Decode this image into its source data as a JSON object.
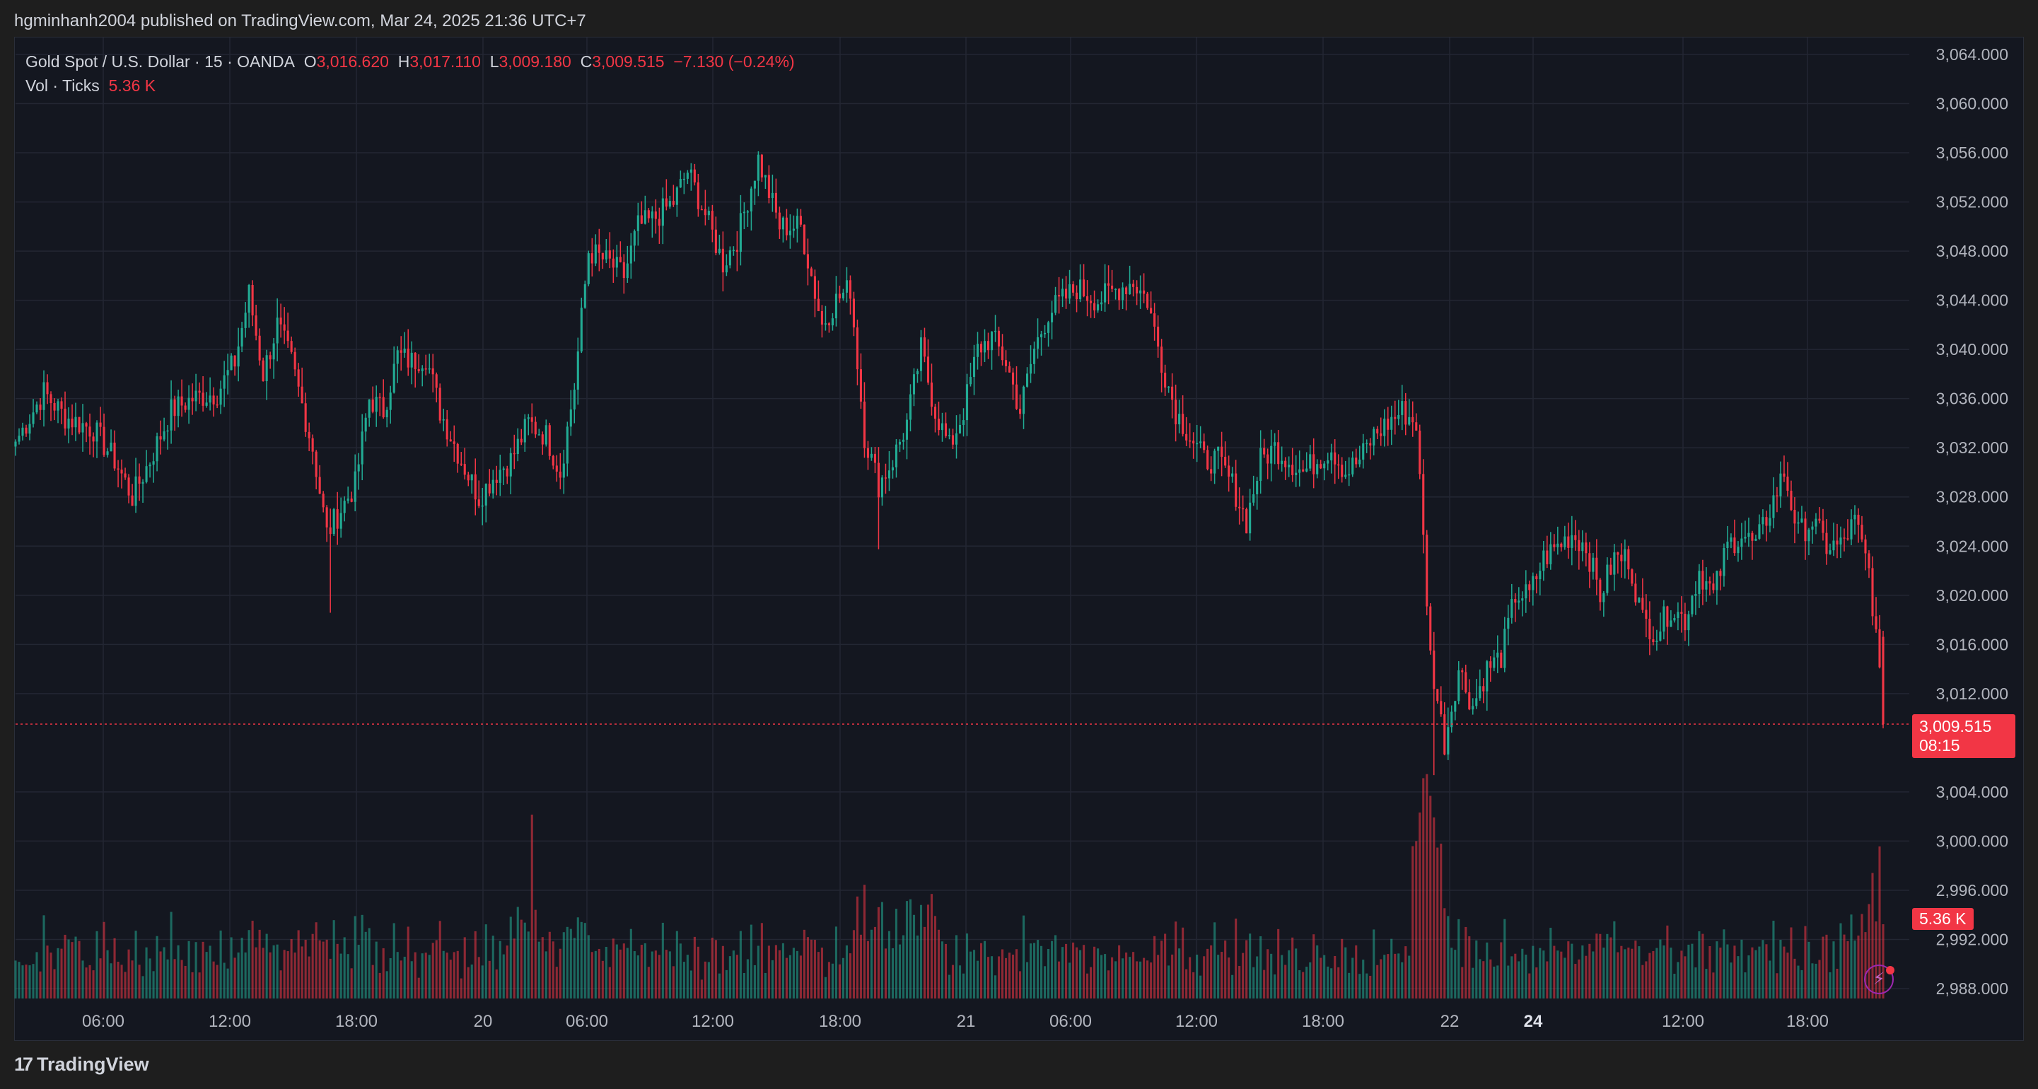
{
  "header": {
    "publish_line": "hgminhanh2004 published on TradingView.com, Mar 24, 2025 21:36 UTC+7"
  },
  "legend": {
    "symbol": "Gold Spot / U.S. Dollar · 15 · OANDA",
    "open_label": "O",
    "open": "3,016.620",
    "high_label": "H",
    "high": "3,017.110",
    "low_label": "L",
    "low": "3,009.180",
    "close_label": "C",
    "close": "3,009.515",
    "change": "−7.130 (−0.24%)",
    "vol_label": "Vol · Ticks",
    "vol_value": "5.36 K"
  },
  "price_tag": {
    "price": "3,009.515",
    "countdown": "08:15"
  },
  "volume_tag": "5.36 K",
  "footer": {
    "brand": "TradingView",
    "logo_mark": "17"
  },
  "colors": {
    "up": "#22ab94",
    "down": "#f23645",
    "background": "#141720",
    "grid": "#232733",
    "text": "#b2b5be"
  },
  "chart_data": {
    "type": "candlestick",
    "symbol": "Gold Spot / U.S. Dollar",
    "interval": "15",
    "y_axis": {
      "ticks": [
        "3,064.000",
        "3,060.000",
        "3,056.000",
        "3,052.000",
        "3,048.000",
        "3,044.000",
        "3,040.000",
        "3,036.000",
        "3,032.000",
        "3,028.000",
        "3,024.000",
        "3,020.000",
        "3,016.000",
        "3,012.000",
        "3,004.000",
        "3,000.000",
        "2,996.000",
        "2,992.000",
        "2,988.000"
      ],
      "range": [
        2987,
        3065
      ]
    },
    "x_axis": {
      "ticks": [
        "06:00",
        "12:00",
        "18:00",
        "20",
        "06:00",
        "12:00",
        "18:00",
        "21",
        "06:00",
        "12:00",
        "18:00",
        "22",
        "24",
        "12:00",
        "18:00"
      ],
      "bold_ticks": [
        "24"
      ]
    },
    "price_anchors": [
      [
        0,
        3032.5
      ],
      [
        8,
        3036.5
      ],
      [
        14,
        3034.5
      ],
      [
        22,
        3033.5
      ],
      [
        28,
        3031
      ],
      [
        33,
        3028
      ],
      [
        38,
        3031
      ],
      [
        44,
        3035
      ],
      [
        50,
        3036
      ],
      [
        57,
        3036.5
      ],
      [
        62,
        3039
      ],
      [
        66,
        3044.5
      ],
      [
        70,
        3038
      ],
      [
        74,
        3042
      ],
      [
        78,
        3039
      ],
      [
        84,
        3032
      ],
      [
        88,
        3025
      ],
      [
        92,
        3027
      ],
      [
        96,
        3029
      ],
      [
        100,
        3036
      ],
      [
        104,
        3035
      ],
      [
        108,
        3039.5
      ],
      [
        112,
        3039
      ],
      [
        116,
        3039.5
      ],
      [
        120,
        3035
      ],
      [
        126,
        3031
      ],
      [
        131,
        3028
      ],
      [
        136,
        3030
      ],
      [
        140,
        3031
      ],
      [
        145,
        3034
      ],
      [
        150,
        3033
      ],
      [
        154,
        3030
      ],
      [
        158,
        3037
      ],
      [
        162,
        3048
      ],
      [
        168,
        3047
      ],
      [
        172,
        3046
      ],
      [
        176,
        3050
      ],
      [
        180,
        3050.5
      ],
      [
        186,
        3052
      ],
      [
        190,
        3054.5
      ],
      [
        195,
        3051
      ],
      [
        200,
        3047
      ],
      [
        204,
        3049
      ],
      [
        210,
        3055.5
      ],
      [
        216,
        3050
      ],
      [
        222,
        3050
      ],
      [
        228,
        3042
      ],
      [
        232,
        3044
      ],
      [
        236,
        3045
      ],
      [
        240,
        3033
      ],
      [
        244,
        3029
      ],
      [
        248,
        3031
      ],
      [
        252,
        3034
      ],
      [
        256,
        3040
      ],
      [
        260,
        3035
      ],
      [
        264,
        3032
      ],
      [
        268,
        3035
      ],
      [
        272,
        3040
      ],
      [
        276,
        3041
      ],
      [
        280,
        3039
      ],
      [
        284,
        3035
      ],
      [
        288,
        3040
      ],
      [
        292,
        3043
      ],
      [
        300,
        3045
      ],
      [
        306,
        3044
      ],
      [
        312,
        3045
      ],
      [
        316,
        3045.5
      ],
      [
        320,
        3044
      ],
      [
        324,
        3039
      ],
      [
        328,
        3035
      ],
      [
        332,
        3033
      ],
      [
        336,
        3031
      ],
      [
        340,
        3031
      ],
      [
        344,
        3029
      ],
      [
        348,
        3026
      ],
      [
        352,
        3031
      ],
      [
        356,
        3032
      ],
      [
        360,
        3031
      ],
      [
        364,
        3030
      ],
      [
        368,
        3031
      ],
      [
        372,
        3032
      ],
      [
        376,
        3030
      ],
      [
        380,
        3031
      ],
      [
        384,
        3033
      ],
      [
        388,
        3034
      ],
      [
        392,
        3035
      ],
      [
        396,
        3034
      ],
      [
        400,
        3015
      ],
      [
        404,
        3008
      ],
      [
        408,
        3014
      ],
      [
        412,
        3011
      ],
      [
        416,
        3014
      ],
      [
        420,
        3015
      ],
      [
        424,
        3020
      ],
      [
        428,
        3020
      ],
      [
        432,
        3023
      ],
      [
        436,
        3024
      ],
      [
        440,
        3025
      ],
      [
        444,
        3024
      ],
      [
        448,
        3020
      ],
      [
        452,
        3023
      ],
      [
        456,
        3023
      ],
      [
        460,
        3018
      ],
      [
        464,
        3017
      ],
      [
        468,
        3019
      ],
      [
        472,
        3018
      ],
      [
        476,
        3022
      ],
      [
        480,
        3020
      ],
      [
        484,
        3024
      ],
      [
        488,
        3025
      ],
      [
        492,
        3024
      ],
      [
        496,
        3027
      ],
      [
        500,
        3030
      ],
      [
        504,
        3025
      ],
      [
        508,
        3026
      ],
      [
        512,
        3024
      ],
      [
        516,
        3024
      ],
      [
        520,
        3026
      ],
      [
        524,
        3022
      ],
      [
        526,
        3016.6
      ],
      [
        528,
        3009.515
      ]
    ],
    "volume_unit": "K ticks",
    "last_volume": 5.36,
    "last_price": 3009.515,
    "open": 3016.62,
    "high": 3017.11,
    "low": 3009.18,
    "close": 3009.515,
    "change": -7.13,
    "change_pct": -0.24,
    "grid": true
  }
}
